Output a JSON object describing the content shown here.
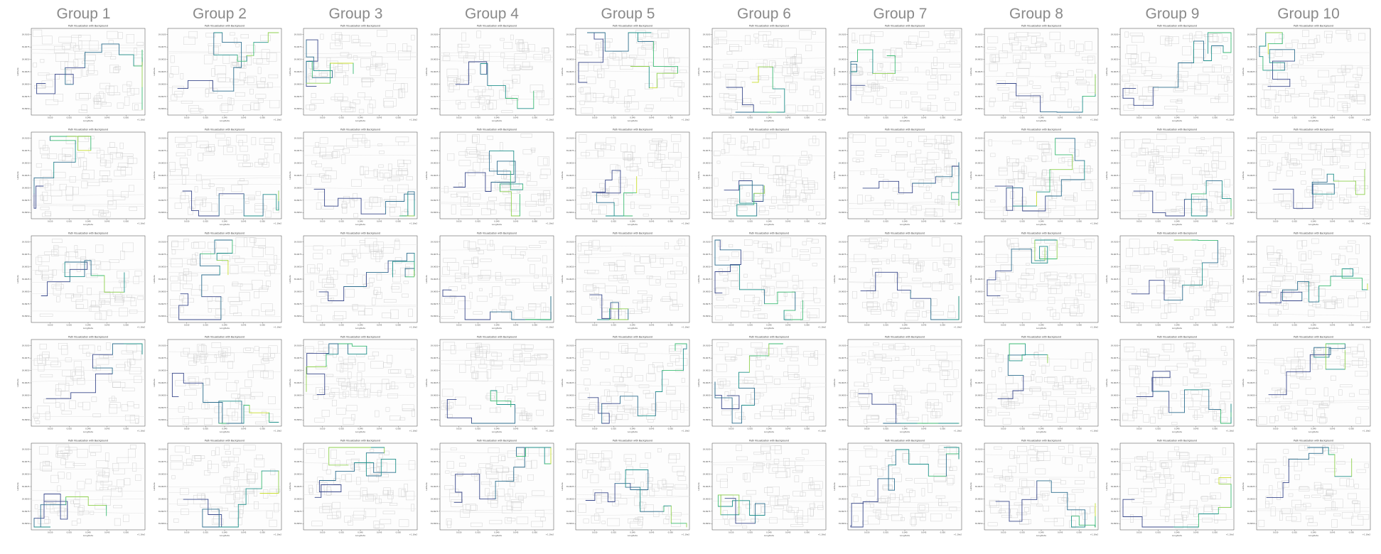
{
  "header": {
    "groups": [
      "Group 1",
      "Group 2",
      "Group 3",
      "Group 4",
      "Group 5",
      "Group 6",
      "Group 7",
      "Group 8",
      "Group 9",
      "Group 10"
    ]
  },
  "panel_common": {
    "title": "Path Visualization with Background",
    "xlabel": "Longitude",
    "ylabel": "Latitude",
    "offset_text": "+1.16e2",
    "background": "grey building footprints (map)",
    "y_ticks": [
      "39.9100",
      "39.9075",
      "39.9050",
      "39.9025",
      "39.9000",
      "39.8975",
      "39.8950"
    ],
    "x_ticks": [
      "0.030",
      "0.035",
      "0.040",
      "0.045",
      "0.050"
    ]
  },
  "colors": {
    "group_title": "#8a8a8a",
    "path_palette": [
      "#3b4a8c",
      "#2f6f8f",
      "#21918c",
      "#3dbc74",
      "#8fd14f",
      "#c9df2d"
    ],
    "building_stroke": "#cfcfcf"
  },
  "chart_data": {
    "type": "line",
    "layout": "5 rows x 10 groups of small multiple path plots",
    "panels_per_group": 5,
    "groups": 10,
    "xlim": [
      0.027,
      0.054
    ],
    "ylim": [
      39.894,
      39.911
    ],
    "xlabel": "Longitude",
    "ylabel": "Latitude",
    "grid": false,
    "note": "Each panel shows a trajectory colored by time over a building-footprint background; exact coordinates are not labeled and are estimated."
  }
}
